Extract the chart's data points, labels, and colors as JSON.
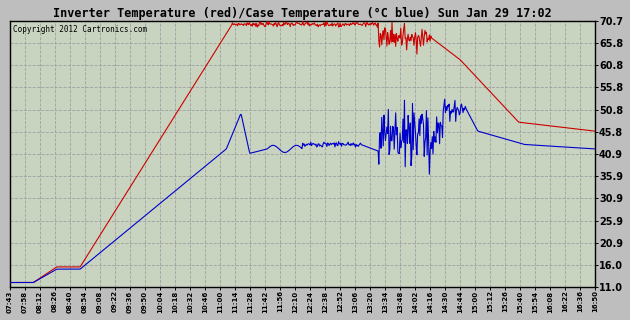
{
  "title": "Inverter Temperature (red)/Case Temperature (°C blue) Sun Jan 29 17:02",
  "copyright": "Copyright 2012 Cartronics.com",
  "bg_color": "#bebebe",
  "plot_bg_color": "#c8d4c0",
  "grid_color": "#a0a0a0",
  "red_color": "#cc0000",
  "blue_color": "#0000cc",
  "ylim": [
    11.0,
    70.7
  ],
  "yticks": [
    11.0,
    16.0,
    20.9,
    25.9,
    30.9,
    35.9,
    40.9,
    45.8,
    50.8,
    55.8,
    60.8,
    65.8,
    70.7
  ],
  "xtick_labels": [
    "07:43",
    "07:58",
    "08:12",
    "08:26",
    "08:40",
    "08:54",
    "09:08",
    "09:22",
    "09:36",
    "09:50",
    "10:04",
    "10:18",
    "10:32",
    "10:46",
    "11:00",
    "11:14",
    "11:28",
    "11:42",
    "11:56",
    "12:10",
    "12:24",
    "12:38",
    "12:52",
    "13:06",
    "13:20",
    "13:34",
    "13:48",
    "14:02",
    "14:16",
    "14:30",
    "14:44",
    "15:00",
    "15:12",
    "15:26",
    "15:40",
    "15:54",
    "16:08",
    "16:22",
    "16:36",
    "16:50"
  ]
}
